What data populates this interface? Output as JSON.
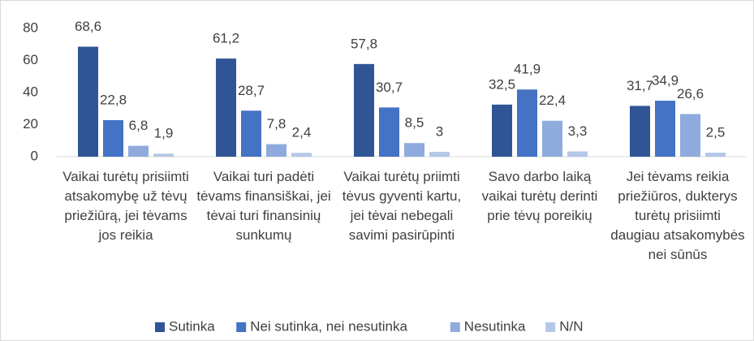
{
  "chart_data": {
    "type": "bar",
    "categories": [
      "Vaikai turėtų prisiimti atsakomybę už tėvų priežiūrą, jei tėvams jos reikia",
      "Vaikai turi padėti tėvams finansiškai, jei tėvai turi finansinių sunkumų",
      "Vaikai turėtų priimti tėvus gyventi kartu, jei tėvai nebegali savimi pasirūpinti",
      "Savo darbo laiką vaikai turėtų derinti prie tėvų poreikių",
      "Jei tėvams reikia priežiūros, dukterys turėtų prisiimti daugiau atsakomybės nei sūnūs"
    ],
    "series": [
      {
        "name": "Sutinka",
        "color": "#2f5597",
        "values": [
          68.6,
          61.2,
          57.8,
          32.5,
          31.7
        ],
        "value_labels": [
          "68,6",
          "61,2",
          "57,8",
          "32,5",
          "31,7"
        ]
      },
      {
        "name": "Nei sutinka, nei nesutinka",
        "color": "#4472c4",
        "values": [
          22.8,
          28.7,
          30.7,
          41.9,
          34.9
        ],
        "value_labels": [
          "22,8",
          "28,7",
          "30,7",
          "41,9",
          "34,9"
        ]
      },
      {
        "name": "Nesutinka",
        "color": "#8faadc",
        "values": [
          6.8,
          7.8,
          8.5,
          22.4,
          26.6
        ],
        "value_labels": [
          "6,8",
          "7,8",
          "8,5",
          "22,4",
          "26,6"
        ]
      },
      {
        "name": "N/N",
        "color": "#b4c7e7",
        "values": [
          1.9,
          2.4,
          3,
          3.3,
          2.5
        ],
        "value_labels": [
          "1,9",
          "2,4",
          "3",
          "3,3",
          "2,5"
        ]
      }
    ],
    "ylim": [
      0,
      80
    ],
    "yticks": [
      0,
      20,
      40,
      60,
      80
    ],
    "grid": false,
    "legend": "bottom"
  }
}
